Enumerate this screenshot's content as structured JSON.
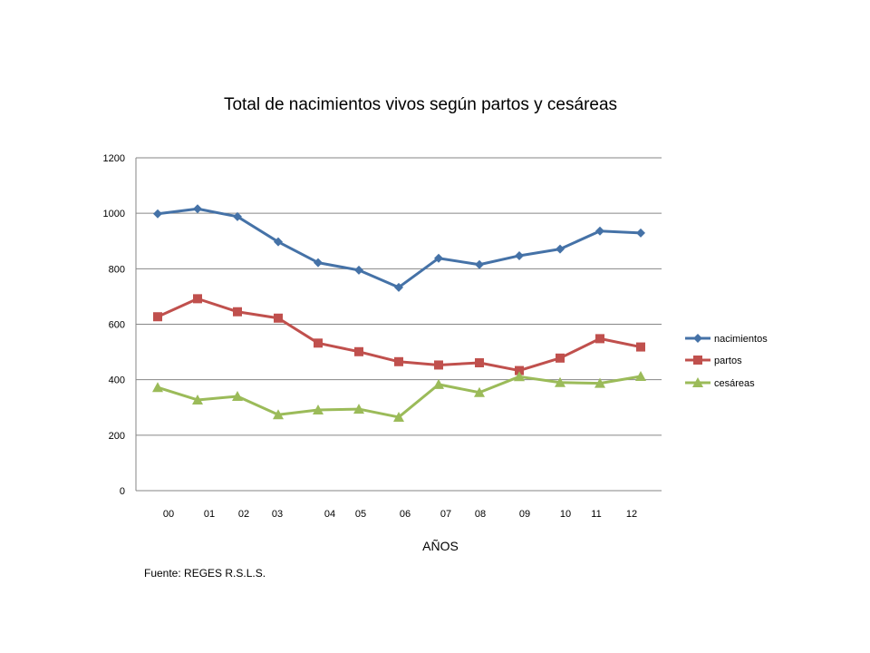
{
  "chart_data": {
    "type": "line",
    "title": "Total de nacimientos vivos según partos y cesáreas",
    "xlabel": "AÑOS",
    "ylabel": "",
    "ylim": [
      0,
      1200
    ],
    "yticks": [
      "0",
      "200",
      "400",
      "600",
      "800",
      "1000",
      "1200"
    ],
    "categories": [
      "00",
      "01",
      "02",
      "03",
      "04",
      "05",
      "06",
      "07",
      "08",
      "09",
      "10",
      "11",
      "12"
    ],
    "grid": "horizontal",
    "legend_position": "right",
    "series": [
      {
        "name": "nacimientos",
        "color": "#4572A7",
        "marker": "diamond",
        "values": [
          998,
          1016,
          988,
          897,
          822,
          795,
          733,
          838,
          815,
          847,
          871,
          936,
          929
        ]
      },
      {
        "name": "partos",
        "color": "#C0504D",
        "marker": "square",
        "values": [
          627,
          692,
          645,
          622,
          532,
          501,
          465,
          453,
          461,
          433,
          478,
          548,
          518
        ]
      },
      {
        "name": "cesáreas",
        "color": "#9BBB59",
        "marker": "triangle",
        "values": [
          372,
          327,
          340,
          274,
          291,
          294,
          265,
          383,
          354,
          411,
          390,
          387,
          412
        ]
      }
    ],
    "source": "Fuente: REGES R.S.L.S."
  }
}
